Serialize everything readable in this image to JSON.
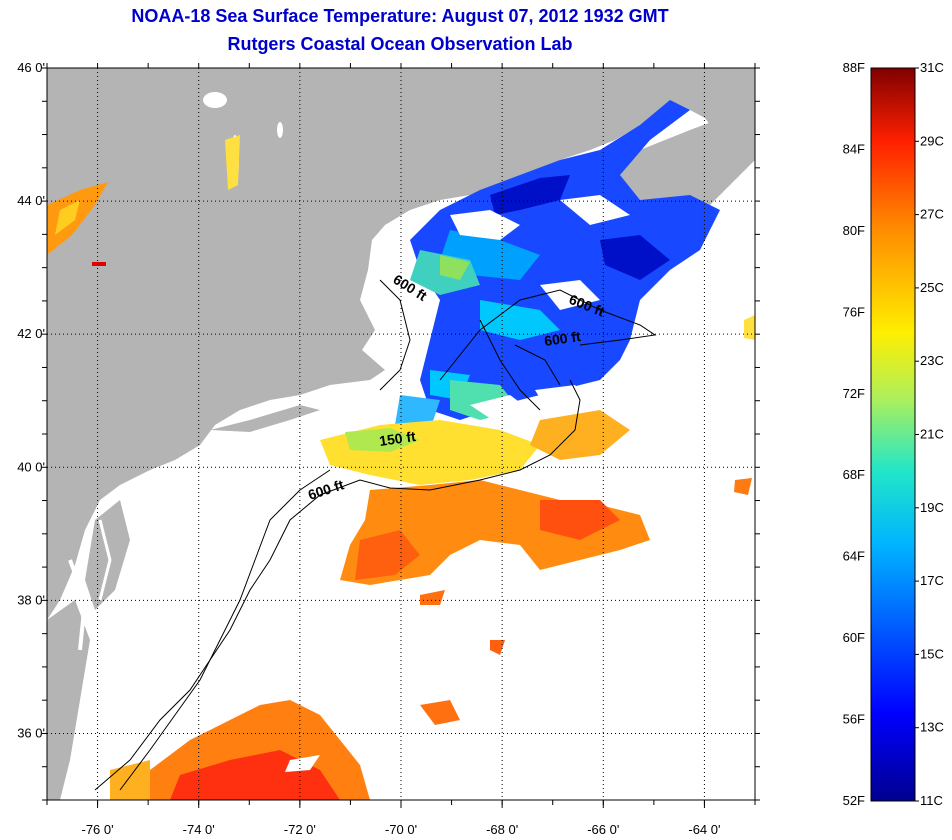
{
  "title": "NOAA-18 Sea Surface Temperature:  August 07, 2012 1932 GMT",
  "subtitle": "Rutgers Coastal Ocean Observation Lab",
  "map": {
    "lon_range": [
      -77,
      -63
    ],
    "lat_range": [
      35,
      46
    ],
    "lon_ticks": [
      {
        "value": -76,
        "label": "-76 0'"
      },
      {
        "value": -74,
        "label": "-74 0'"
      },
      {
        "value": -72,
        "label": "-72 0'"
      },
      {
        "value": -70,
        "label": "-70 0'"
      },
      {
        "value": -68,
        "label": "-68 0'"
      },
      {
        "value": -66,
        "label": "-66 0'"
      },
      {
        "value": -64,
        "label": "-64 0'"
      }
    ],
    "lat_ticks": [
      {
        "value": 46,
        "label": "46 0'"
      },
      {
        "value": 44,
        "label": "44 0'"
      },
      {
        "value": 42,
        "label": "42 0'"
      },
      {
        "value": 40,
        "label": "40 0'"
      },
      {
        "value": 38,
        "label": "38 0'"
      },
      {
        "value": 36,
        "label": "36 0'"
      }
    ],
    "contour_labels": [
      "600 ft",
      "600 ft",
      "600 ft",
      "150 ft",
      "600 ft"
    ],
    "colors": {
      "land": "#b4b4b4",
      "no_data": "#ffffff"
    }
  },
  "colorbar": {
    "fahrenheit": [
      "88F",
      "84F",
      "80F",
      "76F",
      "72F",
      "68F",
      "64F",
      "60F",
      "56F",
      "52F"
    ],
    "celsius": [
      "31C",
      "29C",
      "27C",
      "25C",
      "23C",
      "21C",
      "19C",
      "17C",
      "15C",
      "13C",
      "11C"
    ],
    "range_c": [
      11,
      31
    ]
  }
}
